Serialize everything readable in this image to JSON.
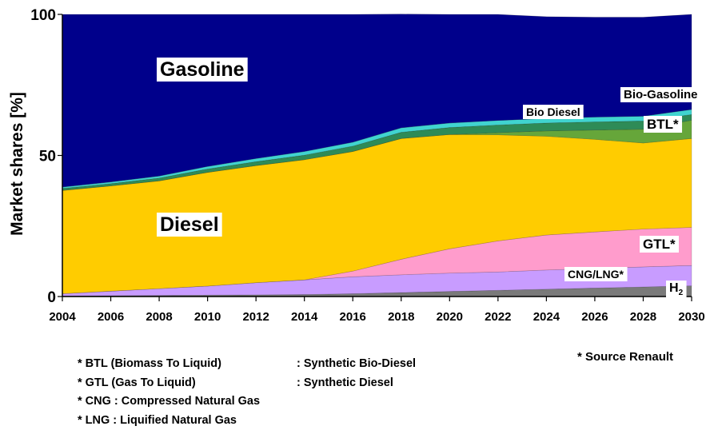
{
  "chart_data": {
    "type": "area",
    "stacked": true,
    "ylabel": "Market shares [%]",
    "xlabel": "",
    "ylim": [
      0,
      100
    ],
    "xlim": [
      2004,
      2030
    ],
    "x": [
      2004,
      2006,
      2008,
      2010,
      2012,
      2014,
      2016,
      2018,
      2020,
      2022,
      2024,
      2026,
      2028,
      2030
    ],
    "xticks": [
      "2004",
      "2006",
      "2008",
      "2010",
      "2012",
      "2014",
      "2016",
      "2018",
      "2020",
      "2022",
      "2024",
      "2026",
      "2028",
      "2030"
    ],
    "yticks": [
      "0",
      "50",
      "100"
    ],
    "series": [
      {
        "name": "H2",
        "label": "H",
        "label_sub": "2",
        "color": "#7a7a7a",
        "values": [
          0.2,
          0.3,
          0.4,
          0.5,
          0.6,
          0.7,
          1.0,
          1.4,
          1.8,
          2.2,
          2.6,
          3.0,
          3.4,
          3.8
        ]
      },
      {
        "name": "CNG/LNG",
        "label": "CNG/LNG*",
        "color": "#c89cff",
        "values": [
          0.8,
          1.6,
          2.4,
          3.2,
          4.3,
          5.2,
          6.0,
          6.3,
          6.5,
          6.5,
          6.8,
          6.9,
          7.1,
          7.2
        ]
      },
      {
        "name": "GTL",
        "label": "GTL*",
        "color": "#ff9ccc",
        "values": [
          0,
          0,
          0,
          0,
          0,
          0,
          2.0,
          5.5,
          8.6,
          11.0,
          12.4,
          13.0,
          13.4,
          13.5
        ]
      },
      {
        "name": "Diesel",
        "label": "Diesel",
        "color": "#ffcc00",
        "values": [
          36.6,
          37.3,
          38.2,
          40.3,
          41.5,
          42.6,
          42.4,
          42.8,
          40.5,
          37.6,
          35.0,
          32.8,
          30.5,
          31.5
        ]
      },
      {
        "name": "BTL",
        "label": "BTL*",
        "color": "#66a63a",
        "values": [
          0,
          0,
          0,
          0,
          0,
          0,
          0,
          0,
          0,
          0.8,
          1.9,
          3.3,
          4.9,
          6.5
        ]
      },
      {
        "name": "Bio Diesel",
        "label": "Bio Diesel",
        "color": "#2e8b57",
        "values": [
          0.7,
          0.8,
          1.0,
          1.2,
          1.4,
          1.6,
          1.9,
          2.2,
          2.5,
          2.7,
          2.8,
          2.9,
          2.9,
          2.0
        ]
      },
      {
        "name": "Bio-Gasoline",
        "label": "Bio-Gasoline",
        "color": "#40d4d0",
        "values": [
          0.5,
          0.6,
          0.7,
          0.9,
          1.1,
          1.3,
          1.4,
          1.6,
          1.6,
          1.6,
          1.6,
          1.7,
          1.7,
          1.8
        ]
      },
      {
        "name": "Gasoline",
        "label": "Gasoline",
        "color": "#00008b",
        "values": [
          61.2,
          59.4,
          57.3,
          53.9,
          51.1,
          48.6,
          45.3,
          40.3,
          38.5,
          37.6,
          36.1,
          35.4,
          35.1,
          33.7
        ]
      }
    ]
  },
  "notes": [
    {
      "left": "* BTL (Biomass To Liquid)",
      "right": ": Synthetic Bio-Diesel"
    },
    {
      "left": "* GTL (Gas To Liquid)",
      "right": ": Synthetic Diesel"
    },
    {
      "left": "* CNG : Compressed Natural Gas",
      "right": ""
    },
    {
      "left": "* LNG : Liquified Natural Gas",
      "right": ""
    }
  ],
  "source": "* Source Renault"
}
